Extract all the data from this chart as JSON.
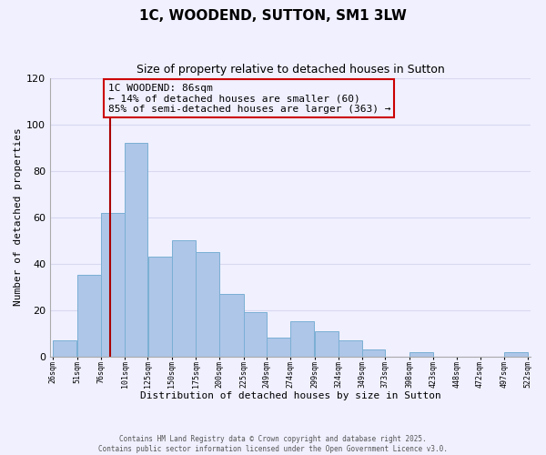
{
  "title": "1C, WOODEND, SUTTON, SM1 3LW",
  "subtitle": "Size of property relative to detached houses in Sutton",
  "xlabel": "Distribution of detached houses by size in Sutton",
  "ylabel": "Number of detached properties",
  "bar_color": "#aec6e8",
  "bar_edge_color": "#7aafd4",
  "background_color": "#f0f0ff",
  "grid_color": "#d8d8f0",
  "bins": [
    26,
    51,
    76,
    101,
    125,
    150,
    175,
    200,
    225,
    249,
    274,
    299,
    324,
    349,
    373,
    398,
    423,
    448,
    472,
    497,
    522
  ],
  "bin_labels": [
    "26sqm",
    "51sqm",
    "76sqm",
    "101sqm",
    "125sqm",
    "150sqm",
    "175sqm",
    "200sqm",
    "225sqm",
    "249sqm",
    "274sqm",
    "299sqm",
    "324sqm",
    "349sqm",
    "373sqm",
    "398sqm",
    "423sqm",
    "448sqm",
    "472sqm",
    "497sqm",
    "522sqm"
  ],
  "values": [
    7,
    35,
    62,
    92,
    43,
    50,
    45,
    27,
    19,
    8,
    15,
    11,
    7,
    3,
    0,
    2,
    0,
    0,
    0,
    2
  ],
  "property_value": 86,
  "property_label": "1C WOODEND: 86sqm",
  "annotation_line1": "← 14% of detached houses are smaller (60)",
  "annotation_line2": "85% of semi-detached houses are larger (363) →",
  "vline_color": "#aa0000",
  "annotation_box_edge": "#cc0000",
  "ylim": [
    0,
    120
  ],
  "yticks": [
    0,
    20,
    40,
    60,
    80,
    100,
    120
  ],
  "footer_line1": "Contains HM Land Registry data © Crown copyright and database right 2025.",
  "footer_line2": "Contains public sector information licensed under the Open Government Licence v3.0."
}
